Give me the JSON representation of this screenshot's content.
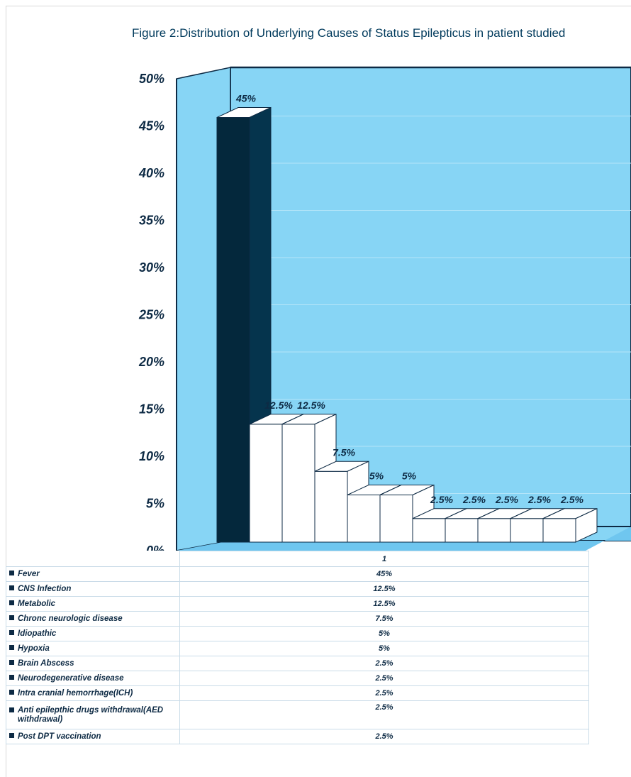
{
  "chart_data": {
    "type": "bar",
    "title": "Figure  2:Distribution of Underlying Causes of Status Epilepticus in patient studied",
    "x_tick": "1",
    "y_ticks": [
      "0%",
      "5%",
      "10%",
      "15%",
      "20%",
      "25%",
      "30%",
      "35%",
      "40%",
      "45%",
      "50%"
    ],
    "ylim": [
      0,
      50
    ],
    "y_unit": "%",
    "series": [
      {
        "name": "Fever",
        "value": 45,
        "label": "45%",
        "table_value": "45%"
      },
      {
        "name": "CNS Infection",
        "value": 12.5,
        "label": "12.5%",
        "table_value": "12.5%"
      },
      {
        "name": "Metabolic",
        "value": 12.5,
        "label": "12.5%",
        "table_value": "12.5%"
      },
      {
        "name": "Chronc neurologic disease",
        "value": 7.5,
        "label": "7.5%",
        "table_value": "7.5%"
      },
      {
        "name": "Idiopathic",
        "value": 5,
        "label": "5%",
        "table_value": "5%"
      },
      {
        "name": "Hypoxia",
        "value": 5,
        "label": "5%",
        "table_value": "5%"
      },
      {
        "name": "Brain Abscess",
        "value": 2.5,
        "label": "2.5%",
        "table_value": "2.5%"
      },
      {
        "name": "Neurodegenerative disease",
        "value": 2.5,
        "label": "2.5%",
        "table_value": "2.5%"
      },
      {
        "name": "Intra cranial hemorrhage(ICH)",
        "value": 2.5,
        "label": "2.5%",
        "table_value": "2.5%"
      },
      {
        "name": "Anti epilepthic drugs withdrawal(AED withdrawal)",
        "value": 2.5,
        "label": "2.5%",
        "table_value": "2.5%"
      },
      {
        "name": "Post DPT vaccination",
        "value": 2.5,
        "label": "2.5%",
        "table_value": "2.5%"
      }
    ],
    "colors": {
      "wall": "#87d5f5",
      "wall_line": "#b5e5f9",
      "floor": "#6fc6ef",
      "axis": "#0d2a44",
      "highlight_bar": "#04283c",
      "bar": "#ffffff",
      "text": "#0d2a44"
    },
    "grid": true,
    "legend": "table-below"
  }
}
